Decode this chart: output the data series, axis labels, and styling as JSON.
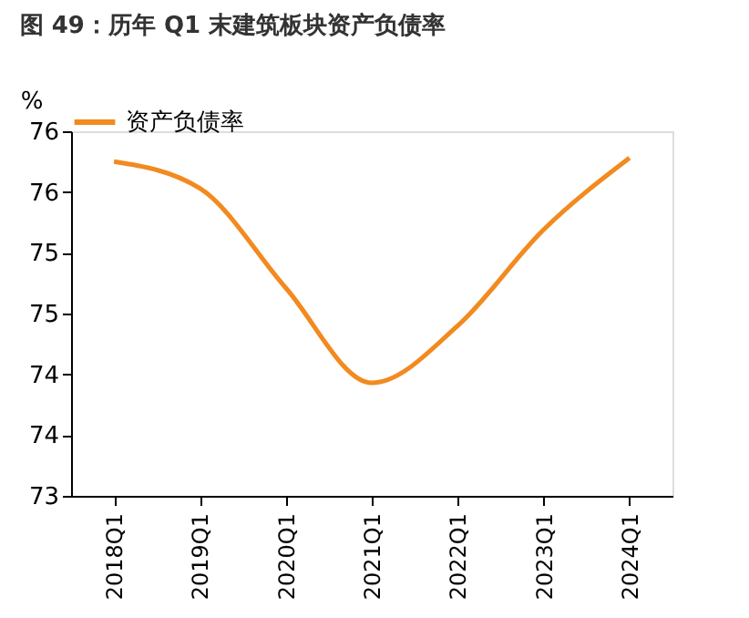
{
  "chart_data": {
    "type": "line",
    "title": "图 49：历年 Q1 末建筑板块资产负债率",
    "ylabel": "%",
    "categories": [
      "2018Q1",
      "2019Q1",
      "2020Q1",
      "2021Q1",
      "2022Q1",
      "2023Q1",
      "2024Q1"
    ],
    "series": [
      {
        "name": "资产负债率",
        "color": "#f28a1f",
        "values": [
          75.75,
          75.53,
          74.71,
          73.93,
          74.4,
          75.19,
          75.78
        ]
      }
    ],
    "ylim": [
      73,
      76
    ],
    "yticks": [
      73,
      {
        "value": 73.5,
        "label": "74"
      },
      74,
      {
        "value": 74.5,
        "label": "75"
      },
      75,
      {
        "value": 75.5,
        "label": "76"
      },
      76
    ],
    "grid": false,
    "legend": "top",
    "marker": "none",
    "line_style": "solid"
  }
}
